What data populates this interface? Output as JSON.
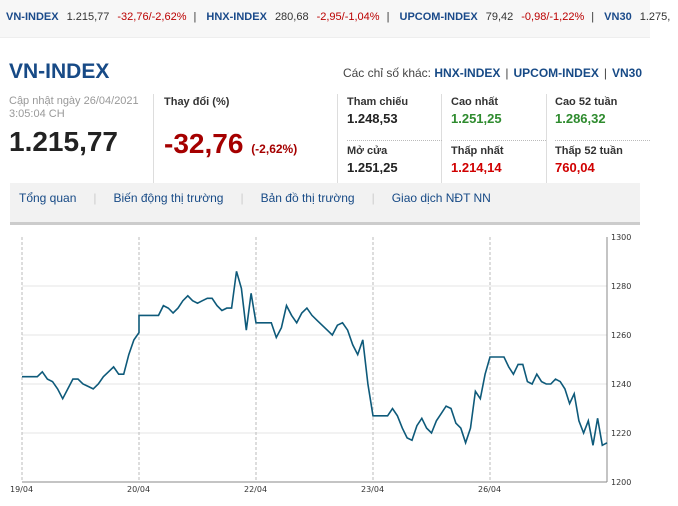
{
  "ticker": [
    {
      "name": "VN-INDEX",
      "value": "1.215,77",
      "change": "-32,76/-2,62%"
    },
    {
      "name": "HNX-INDEX",
      "value": "280,68",
      "change": "-2,95/-1,04%"
    },
    {
      "name": "UPCOM-INDEX",
      "value": "79,42",
      "change": "-0,98/-1,22%"
    },
    {
      "name": "VN30",
      "value": "1.275,"
    }
  ],
  "header": {
    "title": "VN-INDEX",
    "others_label": "Các chỉ số khác:",
    "others": [
      "HNX-INDEX",
      "UPCOM-INDEX",
      "VN30"
    ]
  },
  "summary": {
    "updated_line1": "Cập nhật ngày 26/04/2021",
    "updated_line2": "3:05:04 CH",
    "price": "1.215,77",
    "change_label": "Thay đổi (%)",
    "change": "-32,76",
    "change_pct": "(-2,62%)"
  },
  "stats": [
    {
      "label": "Tham chiếu",
      "value": "1.248,53",
      "color": "#222222"
    },
    {
      "label": "Mở cửa",
      "value": "1.251,25",
      "color": "#222222"
    },
    {
      "label": "Cao nhất",
      "value": "1.251,25",
      "color": "#2e8b2e"
    },
    {
      "label": "Thấp nhất",
      "value": "1.214,14",
      "color": "#d00000"
    },
    {
      "label": "Cao 52 tuần",
      "value": "1.286,32",
      "color": "#2e8b2e"
    },
    {
      "label": "Thấp 52 tuần",
      "value": "760,04",
      "color": "#d00000"
    }
  ],
  "tabs": [
    "Tổng quan",
    "Biến động thị trường",
    "Bản đồ thị trường",
    "Giao dịch NĐT NN"
  ],
  "chart_data": {
    "type": "line",
    "line_color": "#0e5a7a",
    "ylim": [
      1200,
      1300
    ],
    "yticks": [
      "1300",
      "1280",
      "1260",
      "1240",
      "1220",
      "1200"
    ],
    "ytick_values": [
      1300,
      1280,
      1260,
      1240,
      1220,
      1200
    ],
    "grid": true,
    "sessions": [
      {
        "date": "19/04",
        "values": [
          1243,
          1243,
          1243,
          1243,
          1245,
          1242,
          1241,
          1238,
          1234,
          1238,
          1242,
          1242,
          1240,
          1239,
          1238,
          1240,
          1243,
          1245,
          1247,
          1244,
          1244,
          1252,
          1258,
          1261
        ]
      },
      {
        "date": "20/04",
        "values": [
          1268,
          1268,
          1268,
          1268,
          1268,
          1272,
          1271,
          1269,
          1271,
          1274,
          1276,
          1274,
          1273,
          1274,
          1275,
          1275,
          1272,
          1270,
          1271,
          1271,
          1286,
          1279,
          1262,
          1277,
          1265
        ]
      },
      {
        "date": "22/04",
        "values": [
          1265,
          1265,
          1265,
          1265,
          1259,
          1263,
          1272,
          1268,
          1265,
          1269,
          1271,
          1268,
          1266,
          1264,
          1262,
          1260,
          1264,
          1265,
          1262,
          1256,
          1252,
          1258,
          1240,
          1227
        ]
      },
      {
        "date": "23/04",
        "values": [
          1227,
          1227,
          1227,
          1227,
          1230,
          1227,
          1222,
          1218,
          1217,
          1223,
          1226,
          1222,
          1220,
          1225,
          1228,
          1231,
          1230,
          1224,
          1222,
          1216,
          1222,
          1237,
          1234,
          1244,
          1251
        ]
      },
      {
        "date": "26/04",
        "values": [
          1251,
          1251,
          1251,
          1251,
          1247,
          1244,
          1248,
          1248,
          1241,
          1240,
          1244,
          1241,
          1240,
          1240,
          1242,
          1241,
          1238,
          1232,
          1236,
          1225,
          1220,
          1225,
          1215,
          1226,
          1215,
          1216
        ]
      }
    ]
  }
}
